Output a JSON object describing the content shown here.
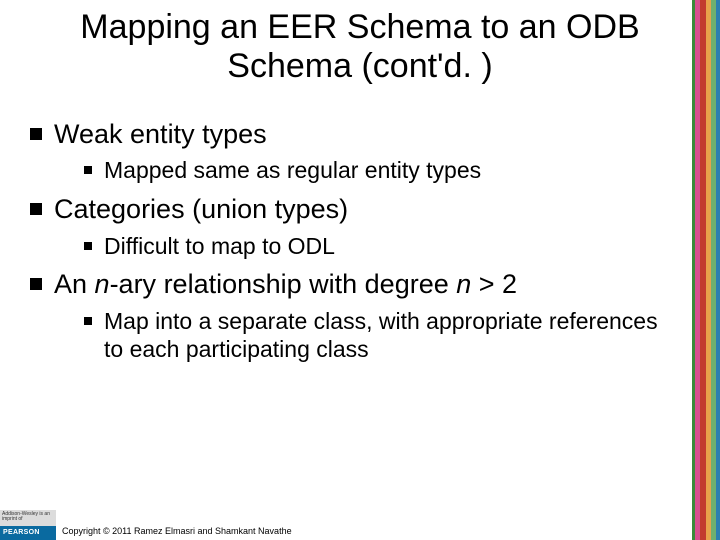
{
  "title": "Mapping an EER Schema to an ODB Schema (cont'd. )",
  "bullets": [
    {
      "text": "Weak entity types",
      "sub": [
        {
          "text": "Mapped same as regular entity types"
        }
      ]
    },
    {
      "text_html": "Categories (union types)",
      "sub": [
        {
          "text": "Difficult to map to ODL"
        }
      ]
    },
    {
      "text_html": "An <span class=\"italic\">n</span>-ary relationship with degree <span class=\"italic\">n</span> > 2",
      "sub": [
        {
          "text": "Map into a separate class, with appropriate references to each participating class"
        }
      ]
    }
  ],
  "color_bar": {
    "stripes": [
      {
        "color": "#3a8b3a",
        "width": 3
      },
      {
        "color": "#d94f8f",
        "width": 5
      },
      {
        "color": "#c23b2e",
        "width": 6
      },
      {
        "color": "#e8a24a",
        "width": 5
      },
      {
        "color": "#6fb06f",
        "width": 5
      },
      {
        "color": "#2c7fb0",
        "width": 4
      }
    ]
  },
  "footer": {
    "pearson_top": "Addison-Wesley is an imprint of",
    "pearson_label": "PEARSON",
    "copyright": "Copyright © 2011 Ramez Elmasri and Shamkant Navathe"
  }
}
